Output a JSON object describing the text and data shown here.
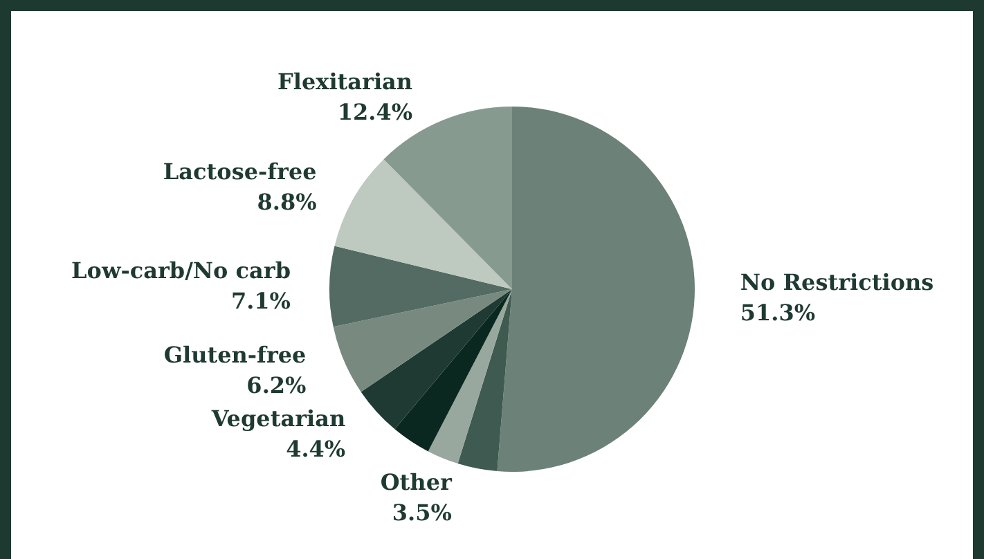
{
  "chart_data": {
    "type": "pie",
    "categories": [
      "No Restrictions",
      "Other",
      null,
      null,
      "Vegetarian",
      "Gluten-free",
      "Low-carb/No carb",
      "Lactose-free",
      "Flexitarian"
    ],
    "values": [
      51.3,
      3.5,
      2.8,
      3.5,
      4.4,
      6.2,
      7.1,
      8.8,
      12.4
    ],
    "value_labels": [
      "51.3%",
      "3.5%",
      null,
      null,
      "4.4%",
      "6.2%",
      "7.1%",
      "8.8%",
      "12.4%"
    ],
    "colors": [
      "#6c8177",
      "#3f5a50",
      "#98a89e",
      "#0a2820",
      "#1f3a32",
      "#788a80",
      "#536b62",
      "#bec9bf",
      "#879a90"
    ],
    "legend": false
  }
}
